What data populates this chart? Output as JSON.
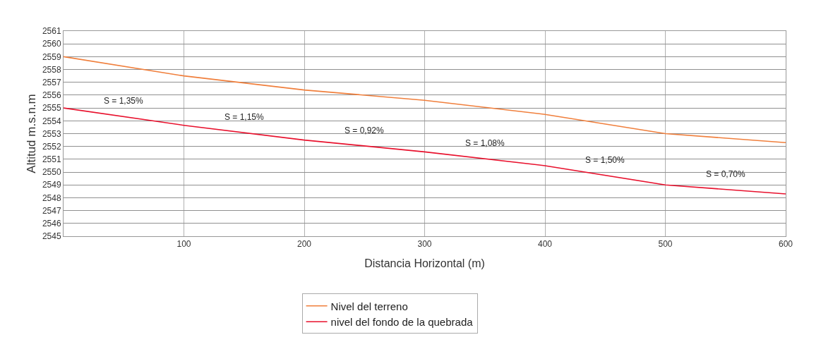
{
  "chart_data": {
    "type": "line",
    "xlabel": "Distancia Horizontal (m)",
    "ylabel": "Altitud m.s.n.m",
    "x": [
      0,
      100,
      200,
      300,
      400,
      500,
      600
    ],
    "series": [
      {
        "name": "Nivel del terreno",
        "color": "#f07f3c",
        "values": [
          2559,
          2557.5,
          2556.4,
          2555.6,
          2554.5,
          2553,
          2552.3
        ]
      },
      {
        "name": "nivel del fondo de la quebrada",
        "color": "#e8112d",
        "values": [
          2555,
          2553.65,
          2552.5,
          2551.58,
          2550.5,
          2549,
          2548.3
        ]
      }
    ],
    "xlim": [
      0,
      600
    ],
    "xticks": [
      100,
      200,
      300,
      400,
      500,
      600
    ],
    "ylim": [
      2545,
      2561
    ],
    "yticks": [
      2545,
      2546,
      2547,
      2548,
      2549,
      2550,
      2551,
      2552,
      2553,
      2554,
      2555,
      2556,
      2557,
      2558,
      2559,
      2560,
      2561
    ],
    "annotations": [
      "S = 1,35%",
      "S = 1,15%",
      "S = 0,92%",
      "S = 1,08%",
      "S = 1,50%",
      "S = 0,70%"
    ],
    "grid": true,
    "legend": "bottom",
    "marker": "none",
    "line_style": "solid"
  }
}
